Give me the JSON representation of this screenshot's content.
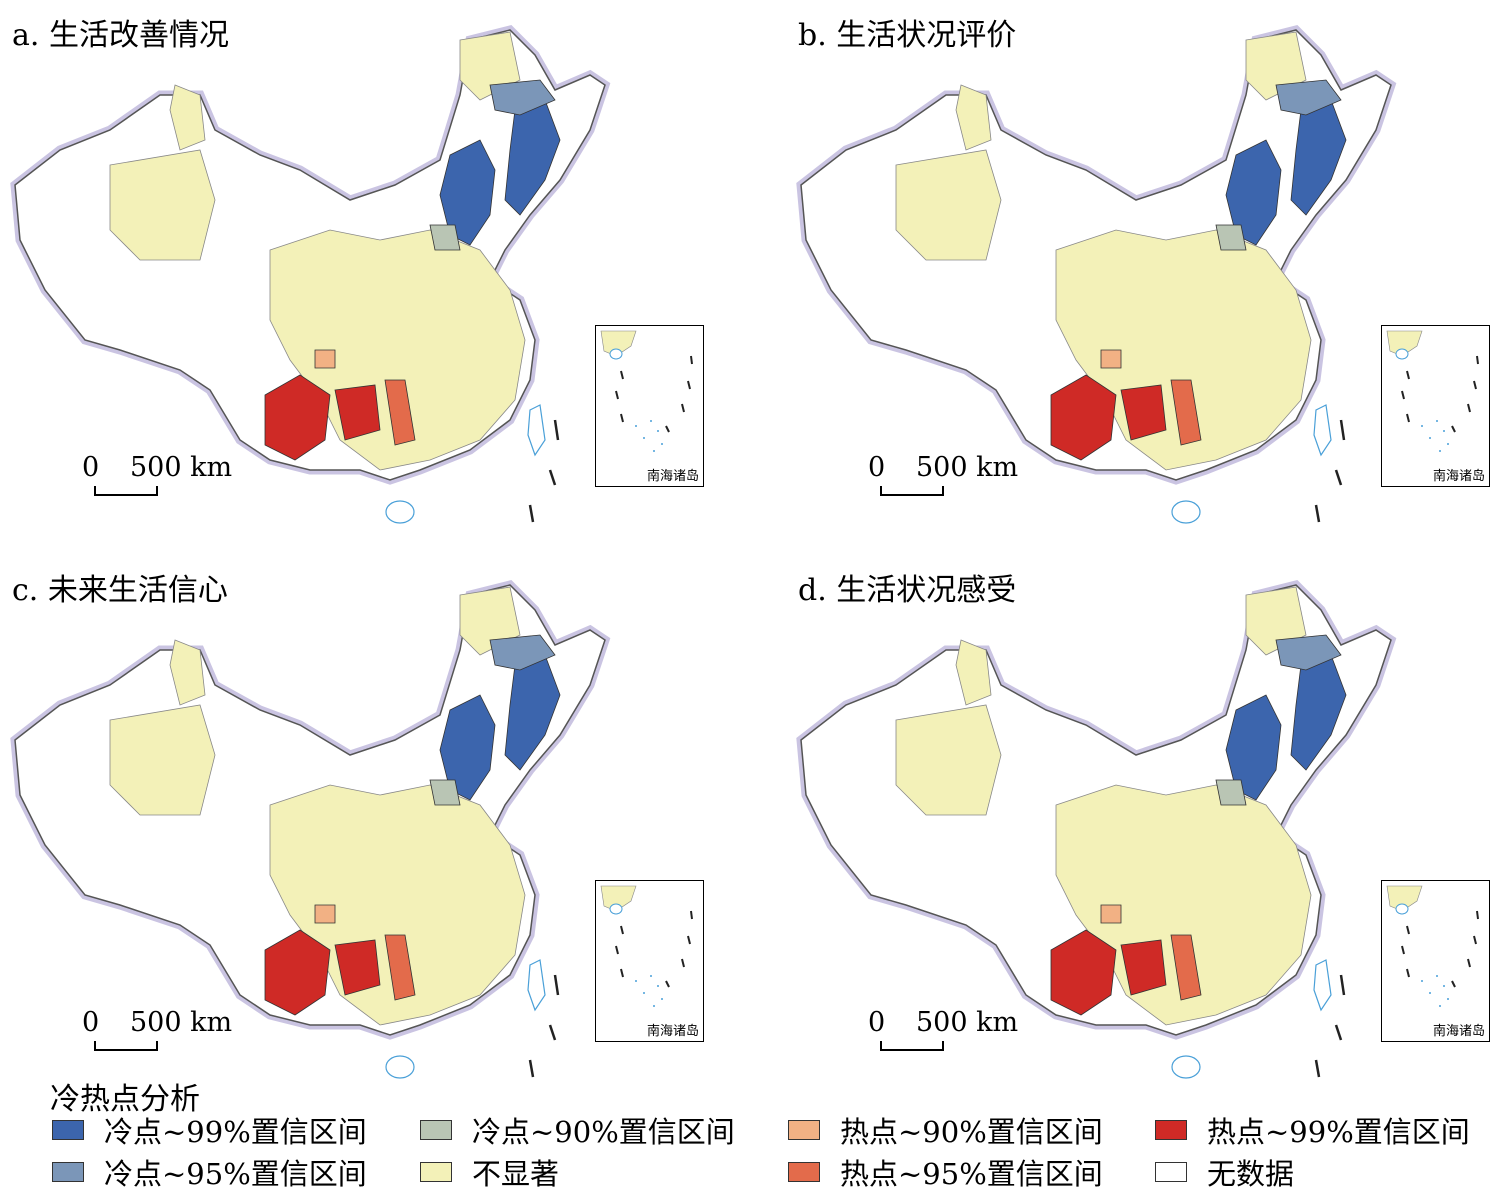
{
  "panels": [
    {
      "id": "a",
      "title": "a. 生活改善情况"
    },
    {
      "id": "b",
      "title": "b. 生活状况评价"
    },
    {
      "id": "c",
      "title": "c. 未来生活信心"
    },
    {
      "id": "d",
      "title": "d. 生活状况感受"
    }
  ],
  "scalebar": {
    "zero": "0",
    "distance": "500 km"
  },
  "inset": {
    "label": "南海诸岛"
  },
  "legend": {
    "title": "冷热点分析",
    "items": [
      {
        "label": "冷点~99%置信区间",
        "color": "#3c65ad"
      },
      {
        "label": "冷点~95%置信区间",
        "color": "#7b96b8"
      },
      {
        "label": "冷点~90%置信区间",
        "color": "#b9c5b4"
      },
      {
        "label": "不显著",
        "color": "#f3f1b8"
      },
      {
        "label": "热点~90%置信区间",
        "color": "#f2b184"
      },
      {
        "label": "热点~95%置信区间",
        "color": "#e36b4b"
      },
      {
        "label": "热点~99%置信区间",
        "color": "#cf2a26"
      },
      {
        "label": "无数据",
        "color": "#ffffff"
      }
    ]
  }
}
